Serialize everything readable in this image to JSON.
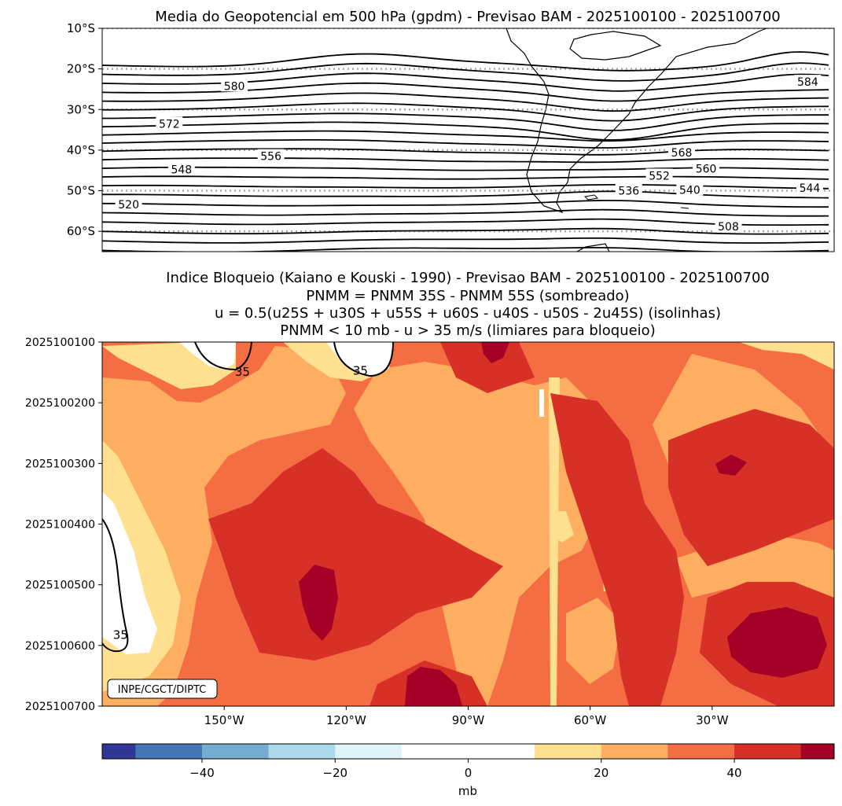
{
  "top_panel": {
    "title": "Media do Geopotencial em 500 hPa (gpdm) - Previsao BAM - 2025100100 - 2025100700"
  },
  "bottom_panel": {
    "title_lines": [
      "Indice Bloqueio (Kaiano e Kouski - 1990) - Previsao BAM - 2025100100 - 2025100700",
      "PNMM = PNMM 35S - PNMM 55S (sombreado)",
      "u = 0.5(u25S + u30S + u55S + u60S - u40S - u50S - 2u45S) (isolinhas)",
      "PNMM < 10 mb - u > 35 m/s (limiares para bloqueio)"
    ],
    "credit": "INPE/CGCT/DIPTC"
  },
  "colorbar": {
    "label": "mb",
    "colors": [
      "#313695",
      "#4575b4",
      "#74add1",
      "#abd9e9",
      "#e0f3f8",
      "#ffffff",
      "#ffffff",
      "#fee090",
      "#fdae61",
      "#f46d43",
      "#d73027",
      "#a50026"
    ]
  },
  "chart_data": [
    {
      "type": "contour",
      "title": "Media do Geopotencial em 500 hPa (gpdm) - Previsao BAM - 2025100100 - 2025100700",
      "units": "gpdm",
      "lat_ticks": [
        "10°S",
        "20°S",
        "30°S",
        "40°S",
        "50°S",
        "60°S"
      ],
      "lat_range": [
        -10,
        -65
      ],
      "gridlines": "dotted gray at each 10°",
      "contour_interval": 4,
      "contour_labels": [
        {
          "value": 580,
          "lon": -147.5,
          "lat": -24.2
        },
        {
          "value": 584,
          "lon": -6.5,
          "lat": -23.2
        },
        {
          "value": 572,
          "lon": -163.5,
          "lat": -33.5
        },
        {
          "value": 568,
          "lon": -37.5,
          "lat": -40.6
        },
        {
          "value": 556,
          "lon": -138.5,
          "lat": -41.5
        },
        {
          "value": 548,
          "lon": -160.5,
          "lat": -44.8
        },
        {
          "value": 560,
          "lon": -31.5,
          "lat": -44.6
        },
        {
          "value": 552,
          "lon": -43.0,
          "lat": -46.3
        },
        {
          "value": 536,
          "lon": -50.5,
          "lat": -50.0
        },
        {
          "value": 540,
          "lon": -35.5,
          "lat": -49.8
        },
        {
          "value": 544,
          "lon": -6.0,
          "lat": -49.3
        },
        {
          "value": 520,
          "lon": -173.5,
          "lat": -53.4
        },
        {
          "value": 508,
          "lon": -26.0,
          "lat": -58.8
        }
      ]
    },
    {
      "type": "heatmap",
      "title": "Indice Bloqueio (Kaiano e Kouski - 1990) - Previsao BAM - 2025100100 - 2025100700",
      "x_ticks": [
        "150°W",
        "120°W",
        "90°W",
        "60°W",
        "30°W"
      ],
      "x_tick_values": [
        -150,
        -120,
        -90,
        -60,
        -30
      ],
      "x_range": [
        -180,
        0
      ],
      "y_ticks": [
        "2025100100",
        "2025100200",
        "2025100300",
        "2025100400",
        "2025100500",
        "2025100600",
        "2025100700"
      ],
      "shading": "PNMM 35S - PNMM 55S (mb)",
      "contour_value": 35,
      "contour_labels": [
        {
          "value": 35,
          "lon": -145.5,
          "day": 0.49
        },
        {
          "value": 35,
          "lon": -116.5,
          "day": 0.47
        },
        {
          "value": 35,
          "lon": -175.5,
          "day": 4.83
        }
      ]
    },
    {
      "type": "colorbar",
      "label": "mb",
      "levels": [
        -55,
        -50,
        -40,
        -30,
        -20,
        -10,
        0,
        10,
        20,
        30,
        40,
        50,
        55
      ],
      "tick_values": [
        -40,
        -20,
        0,
        20,
        40
      ],
      "tick_labels": [
        "−40",
        "−20",
        "0",
        "20",
        "40"
      ]
    }
  ]
}
